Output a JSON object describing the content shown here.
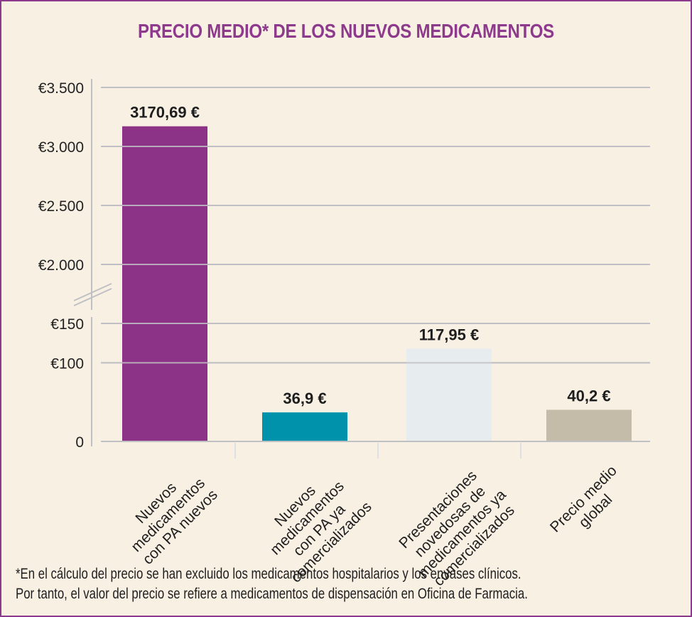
{
  "title": "PRECIO MEDIO* DE LOS NUEVOS MEDICAMENTOS",
  "footnote": {
    "line1": "*En el cálculo del precio se han excluido los medicamentos hospitalarios y los envases clínicos.",
    "line2": "Por tanto, el valor del precio se refiere a medicamentos de dispensación en Oficina de Farmacia."
  },
  "colors": {
    "frame": "#8e3a8c",
    "background": "#f9f0e4",
    "title": "#8e3a8c",
    "grid": "#bfc0c4"
  },
  "chart_data": {
    "type": "bar",
    "title": "PRECIO MEDIO* DE LOS NUEVOS MEDICAMENTOS",
    "xlabel": "",
    "ylabel": "",
    "broken_axis": true,
    "ylim_lower": [
      0,
      150
    ],
    "ylim_upper": [
      2000,
      3500
    ],
    "grid": true,
    "yticks_lower": [
      {
        "value": 0,
        "label": "0"
      },
      {
        "value": 100,
        "label": "€100"
      },
      {
        "value": 150,
        "label": "€150"
      }
    ],
    "yticks_upper": [
      {
        "value": 2000,
        "label": "€2.000"
      },
      {
        "value": 2500,
        "label": "€2.500"
      },
      {
        "value": 3000,
        "label": "€3.000"
      },
      {
        "value": 3500,
        "label": "€3.500"
      }
    ],
    "categories": [
      [
        "Nuevos",
        "medicamentos",
        "con PA nuevos"
      ],
      [
        "Nuevos",
        "medicamentos",
        "con PA ya",
        "comercializados"
      ],
      [
        "Presentaciones",
        "novedosas de",
        "medicamentos ya",
        "comercializados"
      ],
      [
        "Precio medio",
        "global"
      ]
    ],
    "values": [
      3170.69,
      36.9,
      117.95,
      40.2
    ],
    "data_labels": [
      "3170,69 €",
      "36,9 €",
      "117,95 €",
      "40,2 €"
    ],
    "bar_colors": [
      "#8c3387",
      "#0092ab",
      "#e7ecef",
      "#c4bba8"
    ]
  }
}
